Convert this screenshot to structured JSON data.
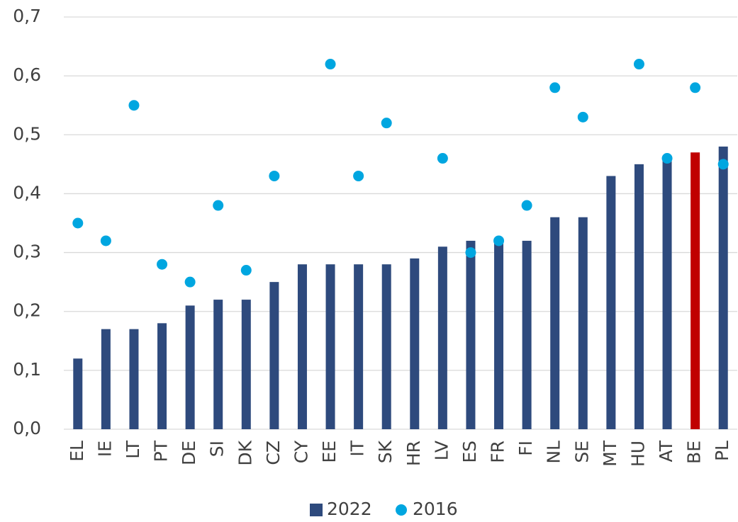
{
  "chart_data": {
    "type": "bar",
    "categories": [
      "EL",
      "IE",
      "LT",
      "PT",
      "DE",
      "SI",
      "DK",
      "CZ",
      "CY",
      "EE",
      "IT",
      "SK",
      "HR",
      "LV",
      "ES",
      "FR",
      "FI",
      "NL",
      "SE",
      "MT",
      "HU",
      "AT",
      "BE",
      "PL"
    ],
    "series": [
      {
        "name": "2022",
        "type": "bar",
        "color": "#2e4a7d",
        "colors": [
          "#2e4a7d",
          "#2e4a7d",
          "#2e4a7d",
          "#2e4a7d",
          "#2e4a7d",
          "#2e4a7d",
          "#2e4a7d",
          "#2e4a7d",
          "#2e4a7d",
          "#2e4a7d",
          "#2e4a7d",
          "#2e4a7d",
          "#2e4a7d",
          "#2e4a7d",
          "#2e4a7d",
          "#2e4a7d",
          "#2e4a7d",
          "#2e4a7d",
          "#2e4a7d",
          "#2e4a7d",
          "#2e4a7d",
          "#2e4a7d",
          "#c00000",
          "#2e4a7d"
        ],
        "values": [
          0.12,
          0.17,
          0.17,
          0.18,
          0.21,
          0.22,
          0.22,
          0.25,
          0.28,
          0.28,
          0.28,
          0.28,
          0.29,
          0.31,
          0.32,
          0.32,
          0.32,
          0.36,
          0.36,
          0.43,
          0.45,
          0.46,
          0.47,
          0.48
        ]
      },
      {
        "name": "2016",
        "type": "scatter",
        "color": "#00a6e0",
        "values": [
          0.35,
          0.32,
          0.55,
          0.28,
          0.25,
          0.38,
          0.27,
          0.43,
          null,
          0.62,
          0.43,
          0.52,
          null,
          0.46,
          0.3,
          0.32,
          0.38,
          0.58,
          0.53,
          null,
          0.62,
          0.46,
          0.58,
          0.45
        ]
      }
    ],
    "ylim": [
      0,
      0.7
    ],
    "yticks": [
      {
        "value": 0,
        "label": "0,0"
      },
      {
        "value": 0.1,
        "label": "0,1"
      },
      {
        "value": 0.2,
        "label": "0,2"
      },
      {
        "value": 0.3,
        "label": "0,3"
      },
      {
        "value": 0.4,
        "label": "0,4"
      },
      {
        "value": 0.5,
        "label": "0,5"
      },
      {
        "value": 0.6,
        "label": "0,6"
      },
      {
        "value": 0.7,
        "label": "0,7"
      }
    ],
    "grid": true,
    "legend": "bottom"
  }
}
